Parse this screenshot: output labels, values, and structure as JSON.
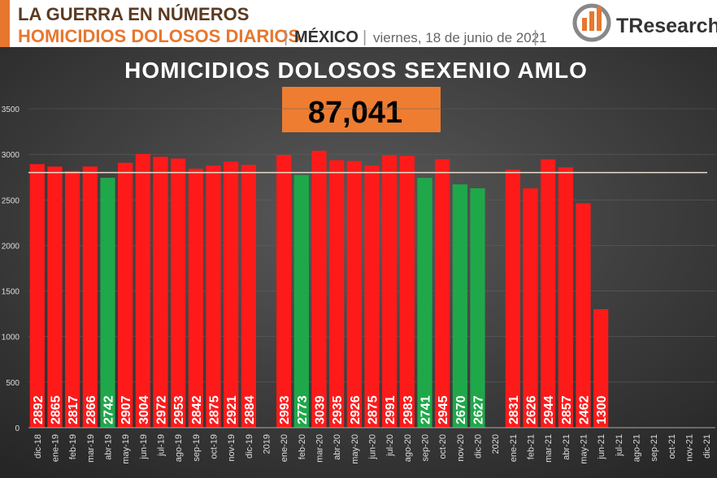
{
  "chart_data": {
    "type": "bar",
    "header_title": "LA GUERRA EN NÚMEROS",
    "header_subtitle": "HOMICIDIOS DOLOSOS DIARIOS",
    "separator": "|",
    "region": "MÉXICO",
    "date": "viernes, 18 de junio de 2021",
    "brand": "TResearch",
    "title": "HOMICIDIOS DOLOSOS SEXENIO AMLO",
    "annotation": "87,041",
    "categories": [
      "dic-18",
      "ene-19",
      "feb-19",
      "mar-19",
      "abr-19",
      "may-19",
      "jun-19",
      "jul-19",
      "ago-19",
      "sep-19",
      "oct-19",
      "nov-19",
      "dic-19",
      "2019",
      "ene-20",
      "feb-20",
      "mar-20",
      "abr-20",
      "may-20",
      "jun-20",
      "jul-20",
      "ago-20",
      "sep-20",
      "oct-20",
      "nov-20",
      "dic-20",
      "2020",
      "ene-21",
      "feb-21",
      "mar-21",
      "abr-21",
      "may-21",
      "jun-21",
      "jul-21",
      "ago-21",
      "sep-21",
      "oct-21",
      "nov-21",
      "dic-21"
    ],
    "values": [
      2892,
      2865,
      2817,
      2866,
      2742,
      2907,
      3004,
      2972,
      2953,
      2842,
      2875,
      2921,
      2884,
      null,
      2993,
      2773,
      3039,
      2935,
      2926,
      2875,
      2991,
      2983,
      2741,
      2945,
      2670,
      2627,
      null,
      2831,
      2626,
      2944,
      2857,
      2462,
      1300,
      null,
      null,
      null,
      null,
      null,
      null
    ],
    "colors": [
      "#ff1a1a",
      "#ff1a1a",
      "#ff1a1a",
      "#ff1a1a",
      "#1fa84a",
      "#ff1a1a",
      "#ff1a1a",
      "#ff1a1a",
      "#ff1a1a",
      "#ff1a1a",
      "#ff1a1a",
      "#ff1a1a",
      "#ff1a1a",
      null,
      "#ff1a1a",
      "#1fa84a",
      "#ff1a1a",
      "#ff1a1a",
      "#ff1a1a",
      "#ff1a1a",
      "#ff1a1a",
      "#ff1a1a",
      "#1fa84a",
      "#ff1a1a",
      "#1fa84a",
      "#1fa84a",
      null,
      "#ff1a1a",
      "#ff1a1a",
      "#ff1a1a",
      "#ff1a1a",
      "#ff1a1a",
      "#ff1a1a",
      null,
      null,
      null,
      null,
      null,
      null
    ],
    "reference_line": 2800,
    "ylim": [
      0,
      3500
    ],
    "yticks": [
      0,
      500,
      1000,
      1500,
      2000,
      2500,
      3000,
      3500
    ],
    "grid": true
  }
}
